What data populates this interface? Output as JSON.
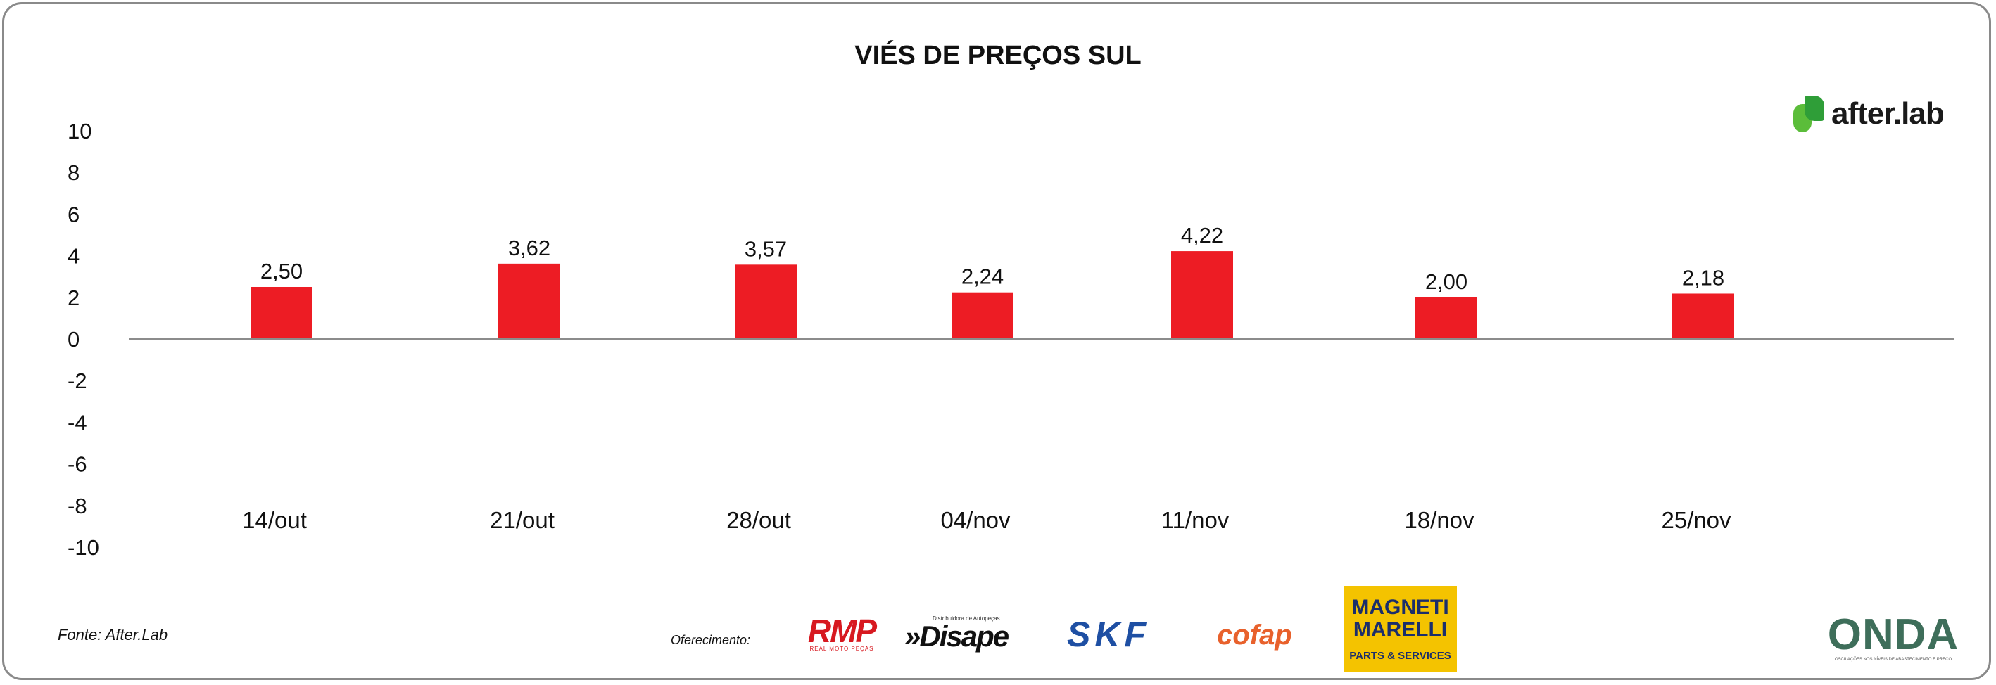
{
  "chart_data": {
    "type": "bar",
    "title": "VIÉS DE PREÇOS SUL",
    "categories": [
      "14/out",
      "21/out",
      "28/out",
      "04/nov",
      "11/nov",
      "18/nov",
      "25/nov"
    ],
    "values": [
      2.5,
      3.62,
      3.57,
      2.24,
      4.22,
      2.0,
      2.18
    ],
    "value_labels": [
      "2,50",
      "3,62",
      "3,57",
      "2,24",
      "4,22",
      "2,00",
      "2,18"
    ],
    "ylim": [
      -10,
      10
    ],
    "yticks": [
      10,
      8,
      6,
      4,
      2,
      0,
      -2,
      -4,
      -6,
      -8,
      -10
    ],
    "xlabel": "",
    "ylabel": "",
    "grid": false,
    "bar_color": "#ed1c24"
  },
  "brand": {
    "name": "after.lab",
    "accent": "#5bbd3a"
  },
  "footer": {
    "source": "Fonte: After.Lab",
    "offer_label": "Oferecimento:"
  },
  "sponsors": {
    "rmp": {
      "name": "RMP",
      "tagline": "REAL MOTO PEÇAS"
    },
    "disape": {
      "name": "»Disape",
      "tagline": "Distribuidora de Autopeças"
    },
    "skf": {
      "name": "SKF"
    },
    "cofap": {
      "name": "cofap"
    },
    "magneti": {
      "line1": "MAGNETI",
      "line2": "MARELLI",
      "tagline": "PARTS & SERVICES"
    },
    "onda": {
      "name": "ONDA",
      "tagline": "OSCILAÇÕES NOS NÍVEIS DE ABASTECIMENTO E PREÇO"
    }
  }
}
